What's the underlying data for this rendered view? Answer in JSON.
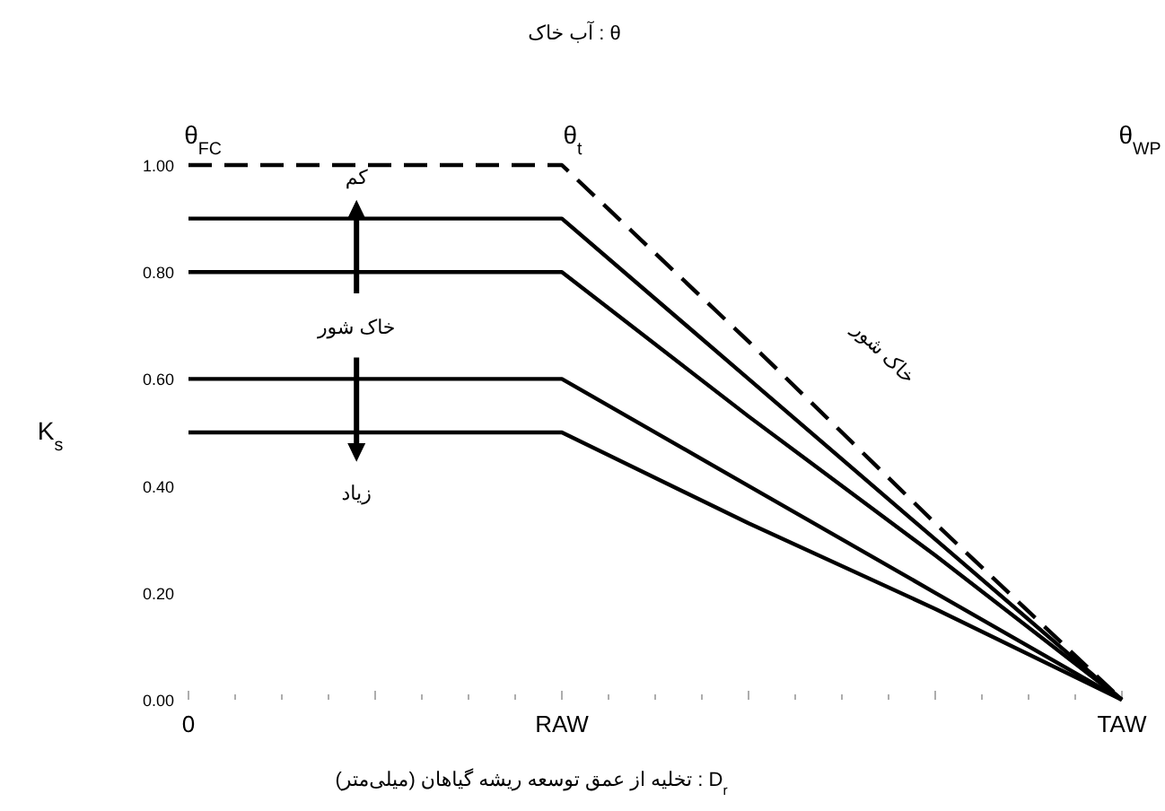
{
  "chart_data": {
    "type": "line",
    "title": "θ : آب خاک",
    "xlabel": "D$_{r}$ : تخلیه از عمق توسعه ریشه گیاهان (میلی‌متر)",
    "ylabel": "K$_{s}$",
    "categories": [
      "0",
      null,
      "RAW",
      null,
      null,
      "TAW"
    ],
    "series": [
      {
        "color": "#000000",
        "line_style": "dashed",
        "values": [
          1.0,
          1.0,
          1.0,
          0.67,
          0.33,
          0
        ]
      },
      {
        "color": "#000000",
        "line_style": "solid",
        "values": [
          0.9,
          0.9,
          0.9,
          0.6,
          0.3,
          0
        ]
      },
      {
        "color": "#000000",
        "line_style": "solid",
        "values": [
          0.8,
          0.8,
          0.8,
          0.53,
          0.27,
          0
        ]
      },
      {
        "color": "#000000",
        "line_style": "solid",
        "values": [
          0.6,
          0.6,
          0.6,
          0.4,
          0.2,
          0
        ]
      },
      {
        "color": "#000000",
        "line_style": "solid",
        "values": [
          0.5,
          0.5,
          0.5,
          0.33,
          0.17,
          0
        ]
      }
    ],
    "ylim": [
      0,
      1.0
    ],
    "yticks": [
      {
        "value": 0,
        "label": "0.00"
      },
      {
        "value": 0.2,
        "label": "0.20"
      },
      {
        "value": 0.4,
        "label": "0.40"
      },
      {
        "value": 0.6,
        "label": "0.60"
      },
      {
        "value": 0.8,
        "label": "0.80"
      },
      {
        "value": 1.0,
        "label": "1.00"
      }
    ],
    "annotations": [
      "کم",
      "خاک شور",
      "زیاد",
      "خاک شور",
      "θ$_{FC}$",
      "θ$_{t}$",
      "θ$_{WP}$"
    ]
  }
}
